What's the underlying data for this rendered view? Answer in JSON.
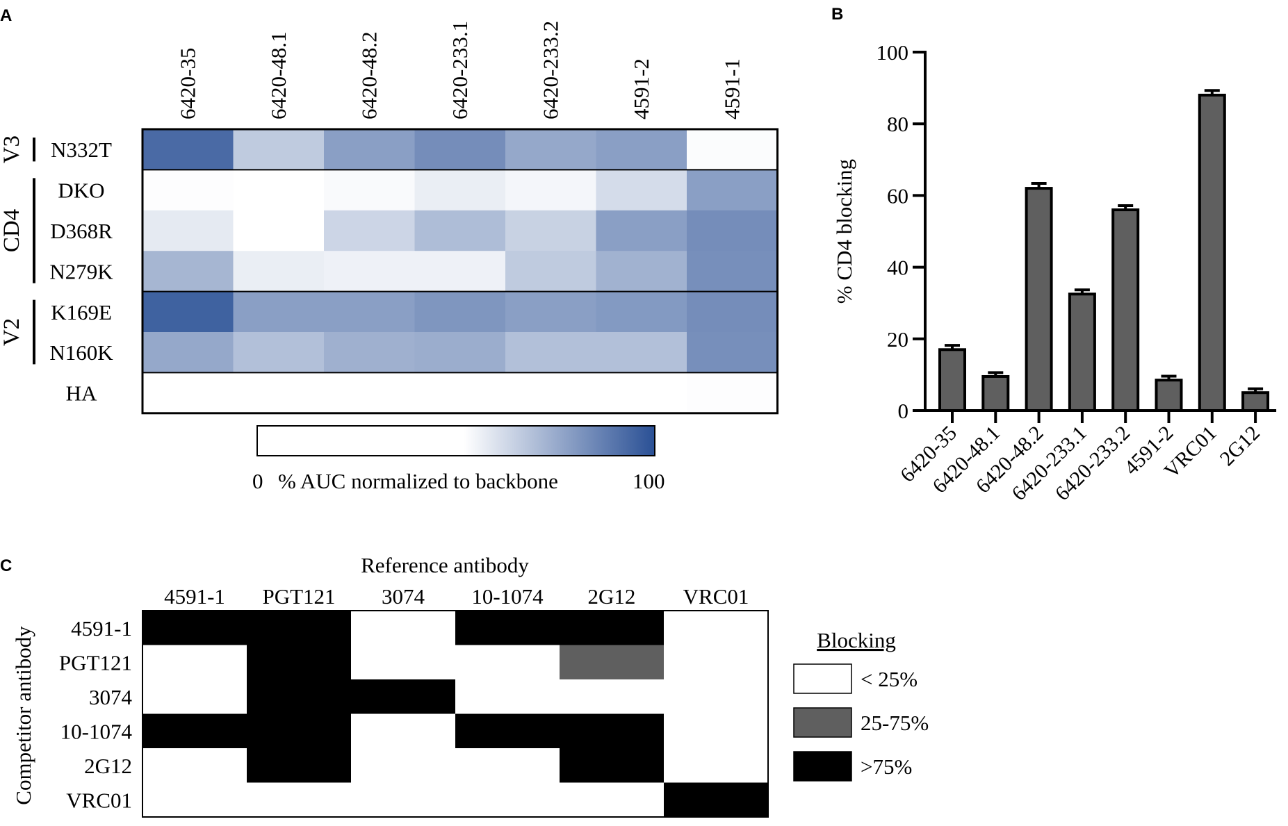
{
  "panels": {
    "a": "A",
    "b": "B",
    "c": "C"
  },
  "chart_data": [
    {
      "type": "heatmap",
      "panel": "A",
      "columns": [
        "6420-35",
        "6420-48.1",
        "6420-48.2",
        "6420-233.1",
        "6420-233.2",
        "4591-2",
        "4591-1"
      ],
      "rows": [
        "N332T",
        "DKO",
        "D368R",
        "N279K",
        "K169E",
        "N160K",
        "HA"
      ],
      "groups": [
        {
          "label": "V3",
          "rows": [
            "N332T"
          ]
        },
        {
          "label": "CD4",
          "rows": [
            "DKO",
            "D368R",
            "N279K"
          ]
        },
        {
          "label": "V2",
          "rows": [
            "K169E",
            "N160K"
          ]
        }
      ],
      "values": [
        [
          85,
          30,
          55,
          65,
          50,
          55,
          2
        ],
        [
          1,
          0,
          3,
          10,
          5,
          20,
          55
        ],
        [
          12,
          0,
          24,
          38,
          26,
          55,
          65
        ],
        [
          42,
          10,
          8,
          8,
          30,
          44,
          64
        ],
        [
          90,
          55,
          55,
          60,
          55,
          58,
          65
        ],
        [
          50,
          36,
          45,
          47,
          36,
          36,
          64
        ],
        [
          0,
          0,
          0,
          0,
          0,
          0,
          1
        ]
      ],
      "colorbar": {
        "min_label": "0",
        "max_label": "100",
        "label": "% AUC normalized to backbone",
        "range": [
          0,
          100
        ],
        "low_color": "#ffffff",
        "high_color": "#2a5095"
      }
    },
    {
      "type": "bar",
      "panel": "B",
      "categories": [
        "6420-35",
        "6420-48.1",
        "6420-48.2",
        "6420-233.1",
        "6420-233.2",
        "4591-2",
        "VRC01",
        "2G12"
      ],
      "values": [
        17,
        9.5,
        62,
        32.5,
        56,
        8.5,
        88,
        5
      ],
      "errors": [
        0.6,
        0.5,
        0.8,
        0.6,
        0.6,
        0.5,
        0.7,
        0.5
      ],
      "ylabel": "% CD4 blocking",
      "ylim": [
        0,
        100
      ],
      "yticks": [
        "0",
        "20",
        "40",
        "60",
        "80",
        "100"
      ],
      "bar_color": "#5f5f5f"
    },
    {
      "type": "heatmap",
      "panel": "C",
      "xlabel": "Reference antibody",
      "ylabel": "Competitor antibody",
      "columns": [
        "4591-1",
        "PGT121",
        "3074",
        "10-1074",
        "2G12",
        "VRC01"
      ],
      "rows": [
        "4591-1",
        "PGT121",
        "3074",
        "10-1074",
        "2G12",
        "VRC01"
      ],
      "levels": [
        [
          2,
          2,
          0,
          2,
          2,
          0
        ],
        [
          0,
          2,
          0,
          0,
          1,
          0
        ],
        [
          0,
          2,
          2,
          0,
          0,
          0
        ],
        [
          2,
          2,
          0,
          2,
          2,
          0
        ],
        [
          0,
          2,
          0,
          0,
          2,
          0
        ],
        [
          0,
          0,
          0,
          0,
          0,
          2
        ]
      ],
      "legend": {
        "title": "Blocking",
        "items": [
          {
            "label": "< 25%",
            "color": "#ffffff"
          },
          {
            "label": "25-75%",
            "color": "#5f5f5f"
          },
          {
            "label": ">75%",
            "color": "#000000"
          }
        ]
      }
    }
  ]
}
